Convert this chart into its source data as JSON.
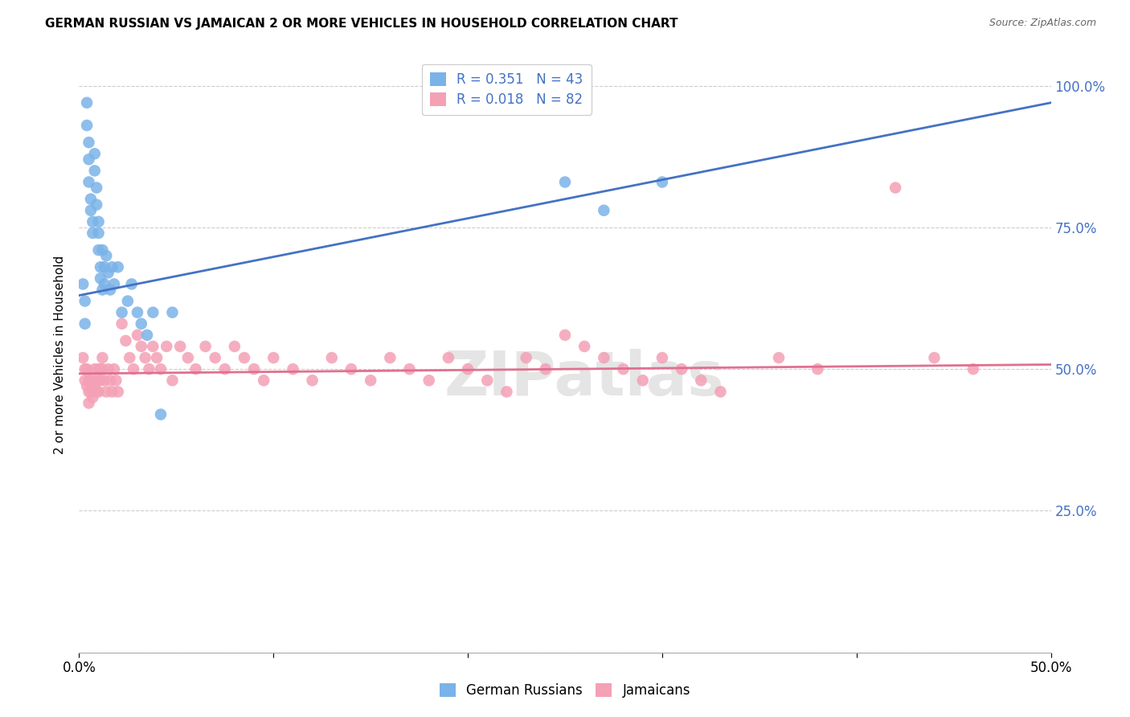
{
  "title": "GERMAN RUSSIAN VS JAMAICAN 2 OR MORE VEHICLES IN HOUSEHOLD CORRELATION CHART",
  "source": "Source: ZipAtlas.com",
  "ylabel": "2 or more Vehicles in Household",
  "xlim": [
    0.0,
    0.5
  ],
  "ylim": [
    0.0,
    1.05
  ],
  "yticks": [
    0.0,
    0.25,
    0.5,
    0.75,
    1.0
  ],
  "ytick_labels": [
    "",
    "25.0%",
    "50.0%",
    "75.0%",
    "100.0%"
  ],
  "legend_blue_label": "R = 0.351   N = 43",
  "legend_pink_label": "R = 0.018   N = 82",
  "blue_color": "#7ab3e8",
  "pink_color": "#f4a0b5",
  "line_blue": "#4472c4",
  "line_pink": "#e07090",
  "watermark": "ZIPatlas",
  "blue_line_x": [
    0.0,
    0.5
  ],
  "blue_line_y": [
    0.63,
    0.97
  ],
  "pink_line_x": [
    0.0,
    0.5
  ],
  "pink_line_y": [
    0.492,
    0.508
  ],
  "blue_x": [
    0.002,
    0.003,
    0.003,
    0.004,
    0.004,
    0.005,
    0.005,
    0.005,
    0.006,
    0.006,
    0.007,
    0.007,
    0.008,
    0.008,
    0.009,
    0.009,
    0.01,
    0.01,
    0.01,
    0.011,
    0.011,
    0.012,
    0.012,
    0.013,
    0.013,
    0.014,
    0.015,
    0.016,
    0.017,
    0.018,
    0.02,
    0.022,
    0.025,
    0.027,
    0.03,
    0.032,
    0.035,
    0.038,
    0.042,
    0.048,
    0.25,
    0.27,
    0.3
  ],
  "blue_y": [
    0.65,
    0.62,
    0.58,
    0.97,
    0.93,
    0.9,
    0.87,
    0.83,
    0.8,
    0.78,
    0.76,
    0.74,
    0.88,
    0.85,
    0.82,
    0.79,
    0.76,
    0.74,
    0.71,
    0.68,
    0.66,
    0.64,
    0.71,
    0.68,
    0.65,
    0.7,
    0.67,
    0.64,
    0.68,
    0.65,
    0.68,
    0.6,
    0.62,
    0.65,
    0.6,
    0.58,
    0.56,
    0.6,
    0.42,
    0.6,
    0.83,
    0.78,
    0.83
  ],
  "pink_x": [
    0.002,
    0.003,
    0.003,
    0.004,
    0.004,
    0.005,
    0.005,
    0.005,
    0.006,
    0.006,
    0.007,
    0.007,
    0.008,
    0.008,
    0.009,
    0.01,
    0.01,
    0.01,
    0.011,
    0.011,
    0.012,
    0.012,
    0.013,
    0.014,
    0.015,
    0.016,
    0.017,
    0.018,
    0.019,
    0.02,
    0.022,
    0.024,
    0.026,
    0.028,
    0.03,
    0.032,
    0.034,
    0.036,
    0.038,
    0.04,
    0.042,
    0.045,
    0.048,
    0.052,
    0.056,
    0.06,
    0.065,
    0.07,
    0.075,
    0.08,
    0.085,
    0.09,
    0.095,
    0.1,
    0.11,
    0.12,
    0.13,
    0.14,
    0.15,
    0.16,
    0.17,
    0.18,
    0.19,
    0.2,
    0.21,
    0.22,
    0.23,
    0.24,
    0.25,
    0.26,
    0.27,
    0.28,
    0.29,
    0.3,
    0.31,
    0.32,
    0.33,
    0.36,
    0.38,
    0.42,
    0.44,
    0.46
  ],
  "pink_y": [
    0.52,
    0.5,
    0.48,
    0.5,
    0.47,
    0.48,
    0.46,
    0.44,
    0.48,
    0.46,
    0.47,
    0.45,
    0.5,
    0.48,
    0.46,
    0.5,
    0.48,
    0.46,
    0.5,
    0.48,
    0.52,
    0.5,
    0.48,
    0.46,
    0.5,
    0.48,
    0.46,
    0.5,
    0.48,
    0.46,
    0.58,
    0.55,
    0.52,
    0.5,
    0.56,
    0.54,
    0.52,
    0.5,
    0.54,
    0.52,
    0.5,
    0.54,
    0.48,
    0.54,
    0.52,
    0.5,
    0.54,
    0.52,
    0.5,
    0.54,
    0.52,
    0.5,
    0.48,
    0.52,
    0.5,
    0.48,
    0.52,
    0.5,
    0.48,
    0.52,
    0.5,
    0.48,
    0.52,
    0.5,
    0.48,
    0.46,
    0.52,
    0.5,
    0.56,
    0.54,
    0.52,
    0.5,
    0.48,
    0.52,
    0.5,
    0.48,
    0.46,
    0.52,
    0.5,
    0.82,
    0.52,
    0.5
  ]
}
